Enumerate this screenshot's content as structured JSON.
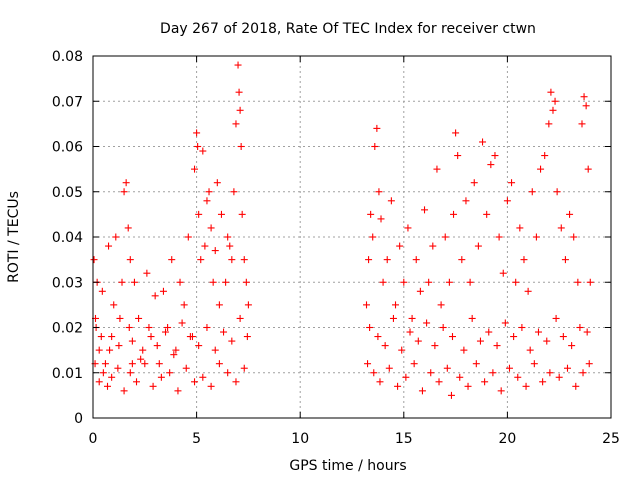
{
  "chart_data": {
    "type": "scatter",
    "title": "Day 267 of 2018, Rate Of TEC Index for receiver ctwn",
    "xlabel": "GPS time / hours",
    "ylabel": "ROTI / TECUs",
    "xlim": [
      0,
      25
    ],
    "ylim": [
      0,
      0.08
    ],
    "xticks": [
      0,
      5,
      10,
      15,
      20,
      25
    ],
    "xtick_labels": [
      "0",
      "5",
      "10",
      "15",
      "20",
      "25"
    ],
    "yticks": [
      0,
      0.01,
      0.02,
      0.03,
      0.04,
      0.05,
      0.06,
      0.07,
      0.08
    ],
    "ytick_labels": [
      "0",
      "0.01",
      "0.02",
      "0.03",
      "0.04",
      "0.05",
      "0.06",
      "0.07",
      "0.08"
    ],
    "grid": true,
    "marker": "+",
    "color": "#ff0000",
    "series": [
      {
        "name": "ROTI",
        "x": [
          0.05,
          0.12,
          0.2,
          0.3,
          0.45,
          0.6,
          0.75,
          0.9,
          1.0,
          1.1,
          1.25,
          1.4,
          1.5,
          1.6,
          1.7,
          1.75,
          1.8,
          1.9,
          2.0,
          2.2,
          2.4,
          2.6,
          2.8,
          3.0,
          3.2,
          3.4,
          3.6,
          3.8,
          4.0,
          4.2,
          4.4,
          4.6,
          4.8,
          4.9,
          5.0,
          5.05,
          5.1,
          5.2,
          5.3,
          5.4,
          5.5,
          5.6,
          5.7,
          5.8,
          5.9,
          6.0,
          6.1,
          6.2,
          6.4,
          6.5,
          6.6,
          6.7,
          6.8,
          6.9,
          7.0,
          7.05,
          7.1,
          7.15,
          7.2,
          7.3,
          7.4,
          7.5,
          0.1,
          0.3,
          0.5,
          0.7,
          0.9,
          1.2,
          1.5,
          1.8,
          2.1,
          2.5,
          2.9,
          3.3,
          3.7,
          4.1,
          4.5,
          4.9,
          5.3,
          5.7,
          6.1,
          6.5,
          6.9,
          7.3,
          0.15,
          0.4,
          0.8,
          1.3,
          1.9,
          2.3,
          2.7,
          3.1,
          3.5,
          3.9,
          4.3,
          4.7,
          5.1,
          5.5,
          5.9,
          6.3,
          6.7,
          7.1,
          7.45,
          13.2,
          13.3,
          13.4,
          13.5,
          13.6,
          13.7,
          13.8,
          13.9,
          14.0,
          14.2,
          14.4,
          14.6,
          14.8,
          15.0,
          15.2,
          15.4,
          15.6,
          15.8,
          16.0,
          16.2,
          16.4,
          16.6,
          16.8,
          17.0,
          17.2,
          17.4,
          17.5,
          17.6,
          17.8,
          18.0,
          18.2,
          18.4,
          18.6,
          18.8,
          19.0,
          19.2,
          19.4,
          19.6,
          19.8,
          20.0,
          20.2,
          20.4,
          20.6,
          20.8,
          21.0,
          21.2,
          21.4,
          21.6,
          21.8,
          22.0,
          22.1,
          22.2,
          22.3,
          22.4,
          22.6,
          22.8,
          23.0,
          23.2,
          23.4,
          23.6,
          23.7,
          23.8,
          23.9,
          24.0,
          13.25,
          13.55,
          13.85,
          14.3,
          14.7,
          15.1,
          15.5,
          15.9,
          16.3,
          16.7,
          17.1,
          17.3,
          17.7,
          18.1,
          18.5,
          18.9,
          19.3,
          19.7,
          20.1,
          20.5,
          20.9,
          21.3,
          21.7,
          22.05,
          22.5,
          22.9,
          23.3,
          23.65,
          23.95,
          13.35,
          13.75,
          14.1,
          14.5,
          14.9,
          15.3,
          15.7,
          16.1,
          16.5,
          16.9,
          17.35,
          17.9,
          18.3,
          18.7,
          19.1,
          19.5,
          19.9,
          20.3,
          20.7,
          21.1,
          21.5,
          21.9,
          22.35,
          22.7,
          23.1,
          23.5,
          23.85
        ],
        "y": [
          0.035,
          0.022,
          0.03,
          0.015,
          0.028,
          0.012,
          0.038,
          0.018,
          0.025,
          0.04,
          0.016,
          0.03,
          0.05,
          0.052,
          0.042,
          0.02,
          0.035,
          0.012,
          0.03,
          0.022,
          0.015,
          0.032,
          0.018,
          0.027,
          0.012,
          0.028,
          0.02,
          0.035,
          0.015,
          0.03,
          0.025,
          0.04,
          0.018,
          0.055,
          0.063,
          0.06,
          0.045,
          0.035,
          0.059,
          0.038,
          0.048,
          0.05,
          0.042,
          0.03,
          0.037,
          0.052,
          0.025,
          0.045,
          0.03,
          0.04,
          0.038,
          0.035,
          0.05,
          0.065,
          0.078,
          0.072,
          0.068,
          0.06,
          0.045,
          0.035,
          0.03,
          0.025,
          0.012,
          0.008,
          0.01,
          0.007,
          0.009,
          0.011,
          0.006,
          0.01,
          0.008,
          0.012,
          0.007,
          0.009,
          0.01,
          0.006,
          0.011,
          0.008,
          0.009,
          0.007,
          0.012,
          0.01,
          0.008,
          0.011,
          0.02,
          0.018,
          0.015,
          0.022,
          0.017,
          0.013,
          0.02,
          0.016,
          0.019,
          0.014,
          0.021,
          0.018,
          0.016,
          0.02,
          0.015,
          0.019,
          0.017,
          0.022,
          0.018,
          0.025,
          0.035,
          0.045,
          0.04,
          0.06,
          0.064,
          0.05,
          0.044,
          0.03,
          0.035,
          0.048,
          0.025,
          0.038,
          0.03,
          0.042,
          0.022,
          0.035,
          0.028,
          0.046,
          0.03,
          0.038,
          0.055,
          0.025,
          0.04,
          0.03,
          0.045,
          0.063,
          0.058,
          0.035,
          0.048,
          0.03,
          0.052,
          0.038,
          0.061,
          0.045,
          0.056,
          0.058,
          0.04,
          0.032,
          0.048,
          0.052,
          0.03,
          0.042,
          0.035,
          0.028,
          0.05,
          0.04,
          0.055,
          0.058,
          0.065,
          0.072,
          0.068,
          0.07,
          0.05,
          0.042,
          0.035,
          0.045,
          0.04,
          0.03,
          0.065,
          0.071,
          0.069,
          0.055,
          0.03,
          0.012,
          0.01,
          0.008,
          0.011,
          0.007,
          0.009,
          0.012,
          0.006,
          0.01,
          0.008,
          0.011,
          0.005,
          0.009,
          0.007,
          0.012,
          0.008,
          0.01,
          0.006,
          0.011,
          0.009,
          0.007,
          0.012,
          0.008,
          0.01,
          0.009,
          0.011,
          0.007,
          0.01,
          0.012,
          0.02,
          0.018,
          0.016,
          0.022,
          0.015,
          0.019,
          0.017,
          0.021,
          0.016,
          0.02,
          0.018,
          0.015,
          0.022,
          0.017,
          0.019,
          0.016,
          0.021,
          0.018,
          0.02,
          0.015,
          0.019,
          0.017,
          0.022,
          0.018,
          0.016,
          0.02,
          0.019
        ]
      }
    ]
  }
}
